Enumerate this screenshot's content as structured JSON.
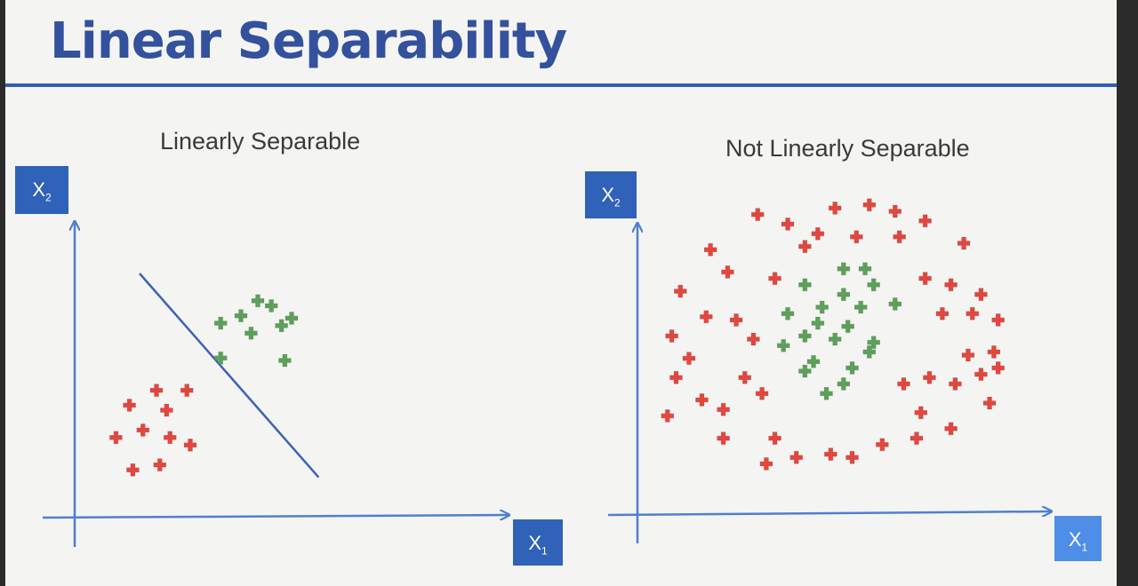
{
  "slide": {
    "title": "Linear Separability"
  },
  "panels": {
    "left": {
      "title": "Linearly Separable",
      "y_axis": {
        "base": "X",
        "sub": "2"
      },
      "x_axis": {
        "base": "X",
        "sub": "1"
      }
    },
    "right": {
      "title": "Not Linearly Separable",
      "y_axis": {
        "base": "X",
        "sub": "2"
      },
      "x_axis": {
        "base": "X",
        "sub": "1"
      }
    }
  },
  "colors": {
    "title": "#33519c",
    "axis": "#4f7fd0",
    "axis_box": "#2f62b8",
    "class_red": "#e2473f",
    "class_green": "#5ca05a",
    "divider_line": "#3d63b3"
  },
  "marker_icon": "plus-icon",
  "chart_data": [
    {
      "type": "scatter",
      "title": "Linearly Separable",
      "xlabel": "X1",
      "ylabel": "X2",
      "xlim": [
        0,
        10
      ],
      "ylim": [
        0,
        10
      ],
      "grid": false,
      "decision_boundary": {
        "from": [
          1.5,
          9.0
        ],
        "to": [
          6.8,
          0.8
        ]
      },
      "series": [
        {
          "class": "red",
          "points": [
            [
              2.0,
              4.3
            ],
            [
              2.9,
              4.3
            ],
            [
              1.2,
              3.7
            ],
            [
              2.3,
              3.5
            ],
            [
              1.6,
              2.7
            ],
            [
              0.8,
              2.4
            ],
            [
              2.4,
              2.4
            ],
            [
              3.0,
              2.1
            ],
            [
              1.3,
              1.1
            ],
            [
              2.1,
              1.3
            ]
          ]
        },
        {
          "class": "green",
          "points": [
            [
              5.0,
              7.9
            ],
            [
              5.4,
              7.7
            ],
            [
              4.5,
              7.3
            ],
            [
              3.9,
              7.0
            ],
            [
              5.7,
              6.9
            ],
            [
              6.0,
              7.2
            ],
            [
              4.8,
              6.6
            ],
            [
              3.9,
              5.6
            ],
            [
              5.8,
              5.5
            ]
          ]
        }
      ]
    },
    {
      "type": "scatter",
      "title": "Not Linearly Separable",
      "xlabel": "X1",
      "ylabel": "X2",
      "xlim": [
        0,
        10
      ],
      "ylim": [
        0,
        10
      ],
      "grid": false,
      "series": [
        {
          "class": "red",
          "points": [
            [
              4.6,
              9.6
            ],
            [
              5.4,
              9.7
            ],
            [
              6.0,
              9.5
            ],
            [
              6.7,
              9.2
            ],
            [
              2.8,
              9.4
            ],
            [
              3.5,
              9.1
            ],
            [
              4.2,
              8.8
            ],
            [
              5.1,
              8.7
            ],
            [
              6.1,
              8.7
            ],
            [
              7.6,
              8.5
            ],
            [
              1.7,
              8.3
            ],
            [
              3.9,
              8.4
            ],
            [
              2.1,
              7.6
            ],
            [
              3.2,
              7.4
            ],
            [
              6.7,
              7.4
            ],
            [
              7.3,
              7.2
            ],
            [
              1.0,
              7.0
            ],
            [
              8.0,
              6.9
            ],
            [
              1.6,
              6.2
            ],
            [
              2.3,
              6.1
            ],
            [
              7.1,
              6.3
            ],
            [
              7.8,
              6.3
            ],
            [
              8.4,
              6.1
            ],
            [
              0.8,
              5.6
            ],
            [
              2.7,
              5.5
            ],
            [
              8.3,
              5.1
            ],
            [
              7.7,
              5.0
            ],
            [
              1.2,
              4.9
            ],
            [
              8.4,
              4.6
            ],
            [
              0.9,
              4.3
            ],
            [
              2.5,
              4.3
            ],
            [
              6.8,
              4.3
            ],
            [
              7.4,
              4.1
            ],
            [
              8.0,
              4.4
            ],
            [
              1.5,
              3.6
            ],
            [
              2.9,
              3.8
            ],
            [
              6.2,
              4.1
            ],
            [
              8.2,
              3.5
            ],
            [
              0.7,
              3.1
            ],
            [
              2.0,
              3.3
            ],
            [
              6.6,
              3.2
            ],
            [
              3.2,
              2.4
            ],
            [
              7.3,
              2.7
            ],
            [
              2.0,
              2.4
            ],
            [
              6.5,
              2.4
            ],
            [
              5.7,
              2.2
            ],
            [
              3.7,
              1.8
            ],
            [
              4.5,
              1.9
            ],
            [
              5.0,
              1.8
            ],
            [
              3.0,
              1.6
            ]
          ]
        },
        {
          "class": "green",
          "points": [
            [
              4.8,
              7.7
            ],
            [
              5.3,
              7.7
            ],
            [
              3.9,
              7.2
            ],
            [
              4.8,
              6.9
            ],
            [
              5.5,
              7.2
            ],
            [
              4.3,
              6.5
            ],
            [
              6.0,
              6.6
            ],
            [
              3.5,
              6.3
            ],
            [
              4.2,
              6.0
            ],
            [
              4.9,
              5.9
            ],
            [
              5.2,
              6.5
            ],
            [
              3.9,
              5.6
            ],
            [
              4.6,
              5.5
            ],
            [
              5.5,
              5.4
            ],
            [
              3.4,
              5.3
            ],
            [
              4.1,
              4.8
            ],
            [
              5.4,
              5.1
            ],
            [
              5.0,
              4.6
            ],
            [
              4.4,
              3.8
            ],
            [
              3.9,
              4.5
            ],
            [
              4.8,
              4.1
            ]
          ]
        }
      ]
    }
  ]
}
